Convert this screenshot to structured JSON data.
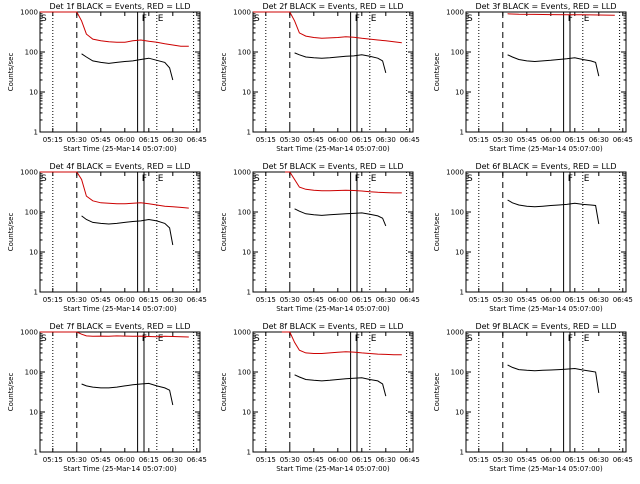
{
  "page": {
    "background": "#ffffff"
  },
  "colors": {
    "events": "#000000",
    "lld": "#cc0000"
  },
  "chart_data": [
    {
      "type": "line",
      "title": "Det 1f BLACK = Events, RED = LLD",
      "xlabel": "Start Time (25-Mar-14 05:07:00)",
      "ylabel": "Counts/sec",
      "x_ticks": [
        "05:15",
        "05:30",
        "05:45",
        "06:00",
        "06:15",
        "06:30",
        "06:45"
      ],
      "y_ticks": [
        "1",
        "10",
        "100",
        "1000"
      ],
      "ylim": [
        1,
        1000
      ],
      "y_scale": "log",
      "markers": [
        "S",
        "F",
        "E"
      ],
      "series": [
        {
          "color": "lld",
          "x": [
            "05:07",
            "05:12",
            "05:16",
            "05:20",
            "05:24",
            "05:27",
            "05:30",
            "05:33",
            "05:36",
            "05:40",
            "05:45",
            "05:50",
            "05:55",
            "06:00",
            "06:05",
            "06:10",
            "06:15",
            "06:20",
            "06:25",
            "06:30",
            "06:35",
            "06:40"
          ],
          "y": [
            1000,
            1000,
            1000,
            1000,
            1000,
            1000,
            1000,
            600,
            280,
            210,
            190,
            180,
            175,
            175,
            190,
            200,
            185,
            175,
            160,
            150,
            140,
            140
          ]
        },
        {
          "color": "events",
          "x": [
            "05:33",
            "05:36",
            "05:40",
            "05:45",
            "05:50",
            "05:55",
            "06:00",
            "06:05",
            "06:10",
            "06:15",
            "06:20",
            "06:25",
            "06:28",
            "06:30"
          ],
          "y": [
            90,
            75,
            60,
            55,
            52,
            55,
            58,
            60,
            65,
            70,
            62,
            55,
            40,
            20
          ]
        }
      ]
    },
    {
      "type": "line",
      "title": "Det 2f BLACK = Events, RED = LLD",
      "xlabel": "Start Time (25-Mar-14 05:07:00)",
      "ylabel": "Counts/sec",
      "x_ticks": [
        "05:15",
        "05:30",
        "05:45",
        "06:00",
        "06:15",
        "06:30",
        "06:45"
      ],
      "y_ticks": [
        "1",
        "10",
        "100",
        "1000"
      ],
      "ylim": [
        1,
        1000
      ],
      "y_scale": "log",
      "markers": [
        "S",
        "F",
        "E"
      ],
      "series": [
        {
          "color": "lld",
          "x": [
            "05:07",
            "05:12",
            "05:16",
            "05:20",
            "05:24",
            "05:27",
            "05:30",
            "05:33",
            "05:36",
            "05:40",
            "05:45",
            "05:50",
            "05:55",
            "06:00",
            "06:05",
            "06:10",
            "06:15",
            "06:20",
            "06:25",
            "06:30",
            "06:35",
            "06:40"
          ],
          "y": [
            1000,
            1000,
            1000,
            1000,
            1000,
            1000,
            1000,
            600,
            300,
            250,
            230,
            220,
            225,
            230,
            240,
            235,
            220,
            210,
            200,
            190,
            180,
            170
          ]
        },
        {
          "color": "events",
          "x": [
            "05:33",
            "05:36",
            "05:40",
            "05:45",
            "05:50",
            "05:55",
            "06:00",
            "06:05",
            "06:10",
            "06:15",
            "06:20",
            "06:25",
            "06:28",
            "06:30"
          ],
          "y": [
            95,
            85,
            75,
            72,
            70,
            72,
            75,
            78,
            80,
            85,
            78,
            70,
            60,
            30
          ]
        }
      ]
    },
    {
      "type": "line",
      "title": "Det 3f BLACK = Events, RED = LLD",
      "xlabel": "Start Time (25-Mar-14 05:07:00)",
      "ylabel": "Counts/sec",
      "x_ticks": [
        "05:15",
        "05:30",
        "05:45",
        "06:00",
        "06:15",
        "06:30",
        "06:45"
      ],
      "y_ticks": [
        "1",
        "10",
        "100",
        "1000"
      ],
      "ylim": [
        1,
        1000
      ],
      "y_scale": "log",
      "markers": [
        "S",
        "F",
        "E"
      ],
      "series": [
        {
          "color": "lld",
          "x": [
            "05:33",
            "05:40",
            "05:50",
            "06:00",
            "06:10",
            "06:20",
            "06:30",
            "06:40"
          ],
          "y": [
            900,
            880,
            870,
            860,
            850,
            850,
            840,
            830
          ]
        },
        {
          "color": "events",
          "x": [
            "05:33",
            "05:36",
            "05:40",
            "05:45",
            "05:50",
            "05:55",
            "06:00",
            "06:05",
            "06:10",
            "06:15",
            "06:20",
            "06:25",
            "06:28",
            "06:30"
          ],
          "y": [
            85,
            75,
            65,
            60,
            58,
            60,
            62,
            65,
            68,
            72,
            65,
            60,
            55,
            25
          ]
        }
      ]
    },
    {
      "type": "line",
      "title": "Det 4f BLACK = Events, RED = LLD",
      "xlabel": "Start Time (25-Mar-14 05:07:00)",
      "ylabel": "Counts/sec",
      "x_ticks": [
        "05:15",
        "05:30",
        "05:45",
        "06:00",
        "06:15",
        "06:30",
        "06:45"
      ],
      "y_ticks": [
        "1",
        "10",
        "100",
        "1000"
      ],
      "ylim": [
        1,
        1000
      ],
      "y_scale": "log",
      "markers": [
        "S",
        "F",
        "E"
      ],
      "series": [
        {
          "color": "lld",
          "x": [
            "05:07",
            "05:12",
            "05:16",
            "05:20",
            "05:24",
            "05:27",
            "05:30",
            "05:33",
            "05:36",
            "05:40",
            "05:45",
            "05:50",
            "05:55",
            "06:00",
            "06:05",
            "06:10",
            "06:15",
            "06:20",
            "06:25",
            "06:30",
            "06:35",
            "06:40"
          ],
          "y": [
            1000,
            1000,
            1000,
            1000,
            1000,
            1000,
            1000,
            650,
            250,
            190,
            170,
            165,
            160,
            160,
            165,
            170,
            160,
            150,
            140,
            135,
            130,
            125
          ]
        },
        {
          "color": "events",
          "x": [
            "05:33",
            "05:36",
            "05:40",
            "05:45",
            "05:50",
            "05:55",
            "06:00",
            "06:05",
            "06:10",
            "06:15",
            "06:20",
            "06:25",
            "06:28",
            "06:30"
          ],
          "y": [
            80,
            65,
            55,
            52,
            50,
            52,
            55,
            58,
            60,
            65,
            60,
            52,
            40,
            15
          ]
        }
      ]
    },
    {
      "type": "line",
      "title": "Det 5f BLACK = Events, RED = LLD",
      "xlabel": "Start Time (25-Mar-14 05:07:00)",
      "ylabel": "Counts/sec",
      "x_ticks": [
        "05:15",
        "05:30",
        "05:45",
        "06:00",
        "06:15",
        "06:30",
        "06:45"
      ],
      "y_ticks": [
        "1",
        "10",
        "100",
        "1000"
      ],
      "ylim": [
        1,
        1000
      ],
      "y_scale": "log",
      "markers": [
        "S",
        "F",
        "E"
      ],
      "series": [
        {
          "color": "lld",
          "x": [
            "05:27",
            "05:30",
            "05:33",
            "05:36",
            "05:40",
            "05:45",
            "05:50",
            "05:55",
            "06:00",
            "06:05",
            "06:10",
            "06:15",
            "06:20",
            "06:25",
            "06:30",
            "06:35",
            "06:40"
          ],
          "y": [
            1000,
            1000,
            650,
            420,
            370,
            350,
            340,
            340,
            345,
            350,
            345,
            335,
            320,
            310,
            305,
            300,
            300
          ]
        },
        {
          "color": "events",
          "x": [
            "05:33",
            "05:36",
            "05:40",
            "05:45",
            "05:50",
            "05:55",
            "06:00",
            "06:05",
            "06:10",
            "06:15",
            "06:20",
            "06:25",
            "06:28",
            "06:30"
          ],
          "y": [
            120,
            105,
            90,
            85,
            82,
            85,
            88,
            90,
            92,
            95,
            88,
            80,
            70,
            45
          ]
        }
      ]
    },
    {
      "type": "line",
      "title": "Det 6f BLACK = Events, RED = LLD",
      "xlabel": "Start Time (25-Mar-14 05:07:00)",
      "ylabel": "Counts/sec",
      "x_ticks": [
        "05:15",
        "05:30",
        "05:45",
        "06:00",
        "06:15",
        "06:30",
        "06:45"
      ],
      "y_ticks": [
        "1",
        "10",
        "100",
        "1000"
      ],
      "ylim": [
        1,
        1000
      ],
      "y_scale": "log",
      "markers": [
        "S",
        "F",
        "E"
      ],
      "series": [
        {
          "color": "events",
          "x": [
            "05:33",
            "05:36",
            "05:40",
            "05:45",
            "05:50",
            "05:55",
            "06:00",
            "06:05",
            "06:10",
            "06:15",
            "06:20",
            "06:25",
            "06:28",
            "06:30"
          ],
          "y": [
            200,
            170,
            150,
            140,
            135,
            140,
            145,
            150,
            155,
            165,
            155,
            150,
            145,
            50
          ]
        }
      ]
    },
    {
      "type": "line",
      "title": "Det 7f BLACK = Events, RED = LLD",
      "xlabel": "Start Time (25-Mar-14 05:07:00)",
      "ylabel": "Counts/sec",
      "x_ticks": [
        "05:15",
        "05:30",
        "05:45",
        "06:00",
        "06:15",
        "06:30",
        "06:45"
      ],
      "y_ticks": [
        "1",
        "10",
        "100",
        "1000"
      ],
      "ylim": [
        1,
        1000
      ],
      "y_scale": "log",
      "markers": [
        "S",
        "F",
        "E"
      ],
      "series": [
        {
          "color": "lld",
          "x": [
            "05:07",
            "05:10",
            "05:13",
            "05:16",
            "05:19",
            "05:22",
            "05:25",
            "05:28",
            "05:30",
            "05:33",
            "05:36",
            "05:40",
            "05:45",
            "05:50",
            "05:55",
            "06:00",
            "06:05",
            "06:10",
            "06:15",
            "06:20",
            "06:25",
            "06:30",
            "06:35",
            "06:40"
          ],
          "y": [
            1000,
            1000,
            1000,
            1000,
            1000,
            1000,
            1000,
            1000,
            1000,
            880,
            800,
            780,
            790,
            780,
            800,
            790,
            780,
            790,
            770,
            760,
            780,
            770,
            760,
            750
          ]
        },
        {
          "color": "events",
          "x": [
            "05:33",
            "05:36",
            "05:40",
            "05:45",
            "05:50",
            "05:55",
            "06:00",
            "06:05",
            "06:10",
            "06:15",
            "06:20",
            "06:25",
            "06:28",
            "06:30"
          ],
          "y": [
            50,
            45,
            42,
            40,
            40,
            42,
            45,
            48,
            50,
            52,
            45,
            40,
            35,
            15
          ]
        }
      ]
    },
    {
      "type": "line",
      "title": "Det 8f BLACK = Events, RED = LLD",
      "xlabel": "Start Time (25-Mar-14 05:07:00)",
      "ylabel": "Counts/sec",
      "x_ticks": [
        "05:15",
        "05:30",
        "05:45",
        "06:00",
        "06:15",
        "06:30",
        "06:45"
      ],
      "y_ticks": [
        "1",
        "10",
        "100",
        "1000"
      ],
      "ylim": [
        1,
        1000
      ],
      "y_scale": "log",
      "markers": [
        "S",
        "F",
        "E"
      ],
      "series": [
        {
          "color": "lld",
          "x": [
            "05:25",
            "05:28",
            "05:30",
            "05:33",
            "05:36",
            "05:40",
            "05:45",
            "05:50",
            "05:55",
            "06:00",
            "06:05",
            "06:10",
            "06:15",
            "06:20",
            "06:25",
            "06:30",
            "06:35",
            "06:40"
          ],
          "y": [
            1000,
            1000,
            1000,
            550,
            350,
            300,
            290,
            290,
            300,
            310,
            320,
            315,
            300,
            290,
            280,
            275,
            270,
            270
          ]
        },
        {
          "color": "events",
          "x": [
            "05:33",
            "05:36",
            "05:40",
            "05:45",
            "05:50",
            "05:55",
            "06:00",
            "06:05",
            "06:10",
            "06:15",
            "06:20",
            "06:25",
            "06:28",
            "06:30"
          ],
          "y": [
            85,
            75,
            65,
            62,
            60,
            62,
            65,
            68,
            70,
            72,
            65,
            60,
            50,
            25
          ]
        }
      ]
    },
    {
      "type": "line",
      "title": "Det 9f BLACK = Events, RED = LLD",
      "xlabel": "Start Time (25-Mar-14 05:07:00)",
      "ylabel": "Counts/sec",
      "x_ticks": [
        "05:15",
        "05:30",
        "05:45",
        "06:00",
        "06:15",
        "06:30",
        "06:45"
      ],
      "y_ticks": [
        "1",
        "10",
        "100",
        "1000"
      ],
      "ylim": [
        1,
        1000
      ],
      "y_scale": "log",
      "markers": [
        "S",
        "F",
        "E"
      ],
      "series": [
        {
          "color": "events",
          "x": [
            "05:33",
            "05:36",
            "05:40",
            "05:45",
            "05:50",
            "05:55",
            "06:00",
            "06:05",
            "06:10",
            "06:15",
            "06:20",
            "06:25",
            "06:28",
            "06:30"
          ],
          "y": [
            150,
            130,
            115,
            110,
            108,
            110,
            112,
            115,
            118,
            122,
            112,
            105,
            100,
            30
          ]
        }
      ]
    }
  ]
}
